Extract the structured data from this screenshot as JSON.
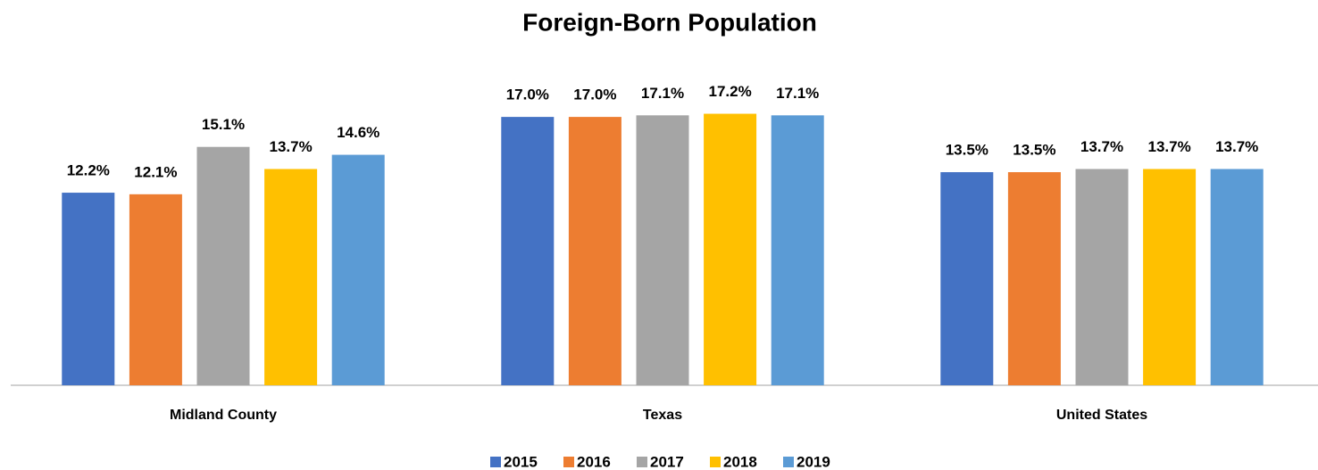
{
  "chart_data": {
    "type": "bar",
    "title": "Foreign-Born Population",
    "categories": [
      "Midland County",
      "Texas",
      "United States"
    ],
    "ylim": [
      0,
      18
    ],
    "series": [
      {
        "name": "2015",
        "color": "#4472c4",
        "values": [
          12.2,
          17.0,
          13.5
        ],
        "value_labels": [
          "12.2%",
          "17.0%",
          "13.5%"
        ]
      },
      {
        "name": "2016",
        "color": "#ed7d31",
        "values": [
          12.1,
          17.0,
          13.5
        ],
        "value_labels": [
          "12.1%",
          "17.0%",
          "13.5%"
        ]
      },
      {
        "name": "2017",
        "color": "#a5a5a5",
        "values": [
          15.1,
          17.1,
          13.7
        ],
        "value_labels": [
          "15.1%",
          "17.1%",
          "13.7%"
        ]
      },
      {
        "name": "2018",
        "color": "#ffc000",
        "values": [
          13.7,
          17.2,
          13.7
        ],
        "value_labels": [
          "13.7%",
          "17.2%",
          "13.7%"
        ]
      },
      {
        "name": "2019",
        "color": "#5b9bd5",
        "values": [
          14.6,
          17.1,
          13.7
        ],
        "value_labels": [
          "14.6%",
          "17.1%",
          "13.7%"
        ]
      }
    ],
    "legend": "bottom"
  }
}
